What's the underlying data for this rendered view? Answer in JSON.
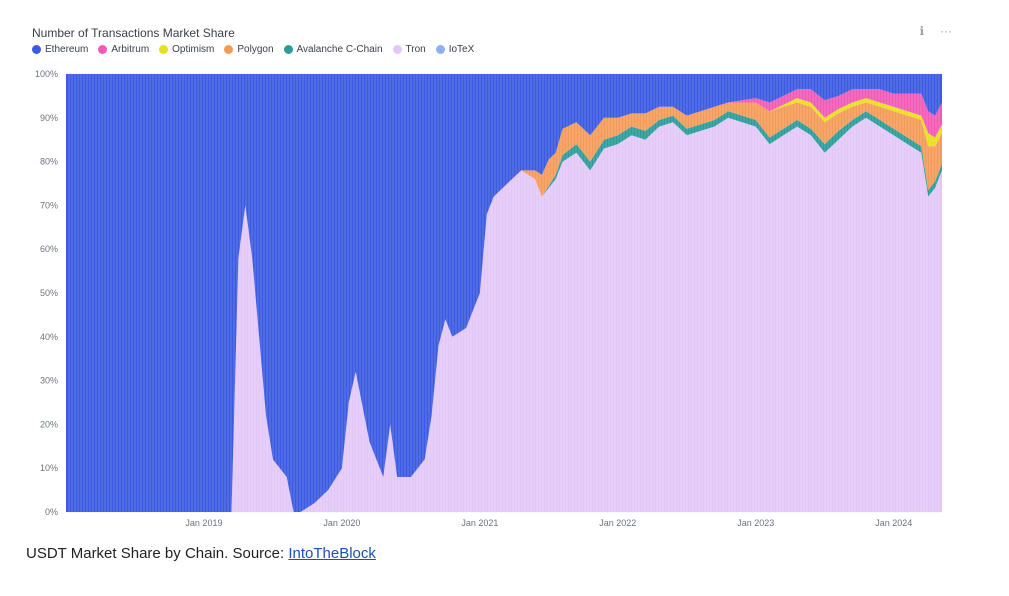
{
  "chart_header": {
    "title": "Number of Transactions Market Share",
    "info_icon": "info-icon",
    "more_icon": "more-options-icon"
  },
  "caption": {
    "text": "USDT Market Share by Chain. Source: ",
    "link_text": "IntoTheBlock"
  },
  "chart_data": {
    "type": "area",
    "stacked": true,
    "title": "Number of Transactions Market Share",
    "xlabel": "",
    "ylabel": "",
    "ylim": [
      0,
      100
    ],
    "y_ticks": [
      "0%",
      "10%",
      "20%",
      "30%",
      "40%",
      "50%",
      "60%",
      "70%",
      "80%",
      "90%",
      "100%"
    ],
    "x_ticks": [
      {
        "label": "Jan 2019",
        "x": 2019.0
      },
      {
        "label": "Jan 2020",
        "x": 2020.0
      },
      {
        "label": "Jan 2021",
        "x": 2021.0
      },
      {
        "label": "Jan 2022",
        "x": 2022.0
      },
      {
        "label": "Jan 2023",
        "x": 2023.0
      },
      {
        "label": "Jan 2024",
        "x": 2024.0
      }
    ],
    "xlim": [
      2018.0,
      2024.35
    ],
    "legend_position": "top-left",
    "x": [
      2018.0,
      2018.5,
      2019.2,
      2019.25,
      2019.3,
      2019.35,
      2019.45,
      2019.5,
      2019.6,
      2019.65,
      2019.7,
      2019.8,
      2019.9,
      2020.0,
      2020.05,
      2020.1,
      2020.2,
      2020.3,
      2020.35,
      2020.4,
      2020.5,
      2020.6,
      2020.65,
      2020.7,
      2020.75,
      2020.8,
      2020.9,
      2021.0,
      2021.05,
      2021.1,
      2021.2,
      2021.3,
      2021.4,
      2021.45,
      2021.5,
      2021.55,
      2021.6,
      2021.7,
      2021.8,
      2021.9,
      2022.0,
      2022.1,
      2022.2,
      2022.3,
      2022.4,
      2022.5,
      2022.6,
      2022.7,
      2022.8,
      2022.9,
      2023.0,
      2023.1,
      2023.2,
      2023.3,
      2023.4,
      2023.5,
      2023.6,
      2023.7,
      2023.8,
      2023.9,
      2024.0,
      2024.1,
      2024.2,
      2024.25,
      2024.3,
      2024.35
    ],
    "series": [
      {
        "name": "Tron",
        "color": "#e3c8f7",
        "values": [
          0,
          0,
          0,
          58,
          70,
          58,
          22,
          12,
          8,
          0,
          0,
          2,
          5,
          10,
          25,
          32,
          16,
          8,
          20,
          8,
          8,
          12,
          22,
          38,
          44,
          40,
          42,
          50,
          68,
          72,
          75,
          78,
          76,
          72,
          74,
          76,
          80,
          82,
          78,
          83,
          84,
          86,
          85,
          88,
          89,
          86,
          87,
          88,
          90,
          89,
          88,
          84,
          86,
          88,
          86,
          82,
          85,
          88,
          90,
          88,
          86,
          84,
          82,
          72,
          74,
          78
        ]
      },
      {
        "name": "Avalanche C-Chain",
        "color": "#2a9d9a",
        "values": [
          0,
          0,
          0,
          0,
          0,
          0,
          0,
          0,
          0,
          0,
          0,
          0,
          0,
          0,
          0,
          0,
          0,
          0,
          0,
          0,
          0,
          0,
          0,
          0,
          0,
          0,
          0,
          0,
          0,
          0,
          0,
          0,
          0,
          0,
          0.5,
          1,
          1.5,
          2,
          2,
          2,
          2,
          2,
          2,
          1.5,
          1.5,
          1.5,
          1.5,
          1.5,
          1.5,
          1.5,
          1.5,
          1.5,
          1.5,
          1.5,
          1.5,
          2,
          2,
          1.5,
          1.5,
          1.5,
          1.5,
          1.5,
          1.5,
          1.5,
          1.5,
          1.5
        ]
      },
      {
        "name": "Polygon",
        "color": "#f59b5a",
        "values": [
          0,
          0,
          0,
          0,
          0,
          0,
          0,
          0,
          0,
          0,
          0,
          0,
          0,
          0,
          0,
          0,
          0,
          0,
          0,
          0,
          0,
          0,
          0,
          0,
          0,
          0,
          0,
          0,
          0,
          0,
          0,
          0,
          2,
          5,
          6,
          5,
          6,
          5,
          6,
          5,
          4,
          3,
          4,
          3,
          2,
          3,
          3,
          3,
          2,
          3,
          4,
          6,
          5,
          4,
          5,
          5,
          4,
          3,
          2,
          3,
          4,
          5,
          6,
          10,
          8,
          7
        ]
      },
      {
        "name": "Optimism",
        "color": "#e8e01c",
        "values": [
          0,
          0,
          0,
          0,
          0,
          0,
          0,
          0,
          0,
          0,
          0,
          0,
          0,
          0,
          0,
          0,
          0,
          0,
          0,
          0,
          0,
          0,
          0,
          0,
          0,
          0,
          0,
          0,
          0,
          0,
          0,
          0,
          0,
          0,
          0,
          0,
          0,
          0,
          0,
          0,
          0,
          0,
          0,
          0,
          0,
          0,
          0,
          0,
          0,
          0,
          0,
          0,
          0.5,
          1,
          1,
          1,
          1,
          1,
          1,
          1,
          1,
          1,
          1,
          3,
          2,
          2
        ]
      },
      {
        "name": "Arbitrum",
        "color": "#f25ab6",
        "values": [
          0,
          0,
          0,
          0,
          0,
          0,
          0,
          0,
          0,
          0,
          0,
          0,
          0,
          0,
          0,
          0,
          0,
          0,
          0,
          0,
          0,
          0,
          0,
          0,
          0,
          0,
          0,
          0,
          0,
          0,
          0,
          0,
          0,
          0,
          0,
          0,
          0,
          0,
          0,
          0,
          0,
          0,
          0,
          0,
          0,
          0,
          0,
          0,
          0,
          0.5,
          1,
          2,
          2,
          2,
          3,
          4,
          3,
          3,
          2,
          3,
          3,
          4,
          5,
          5,
          5,
          5
        ]
      },
      {
        "name": "IoTeX",
        "color": "#8fb0ef",
        "values": [
          0,
          0,
          0,
          0,
          0,
          0,
          0,
          0,
          0,
          0,
          0,
          0,
          0,
          0,
          0,
          0,
          0,
          0,
          0,
          0,
          0,
          0,
          0,
          0,
          0,
          0,
          0,
          0,
          0,
          0,
          0,
          0,
          0,
          0,
          0,
          0,
          0,
          0,
          0,
          0,
          0,
          0,
          0,
          0,
          0,
          0,
          0,
          0,
          0,
          0,
          0,
          0,
          0,
          0,
          0,
          0,
          0,
          0,
          0,
          0,
          0,
          0,
          0,
          0,
          0,
          0
        ]
      },
      {
        "name": "Ethereum",
        "color": "#3b5be2",
        "values": [
          100,
          100,
          100,
          42,
          30,
          42,
          78,
          88,
          92,
          100,
          100,
          98,
          95,
          90,
          75,
          68,
          84,
          92,
          80,
          92,
          92,
          88,
          78,
          62,
          56,
          60,
          58,
          50,
          32,
          28,
          25,
          22,
          22,
          23,
          19.5,
          18,
          12.5,
          11,
          14,
          10,
          10,
          9,
          9,
          7.5,
          7.5,
          9.5,
          8.5,
          7.5,
          6.5,
          6,
          5.5,
          6.5,
          5,
          3.5,
          3.5,
          6,
          5,
          3.5,
          3.5,
          3.5,
          4.5,
          4.5,
          4.5,
          8.5,
          9.5,
          6.5
        ]
      }
    ],
    "legend": [
      "Ethereum",
      "Arbitrum",
      "Optimism",
      "Polygon",
      "Avalanche C-Chain",
      "Tron",
      "IoTeX"
    ]
  }
}
